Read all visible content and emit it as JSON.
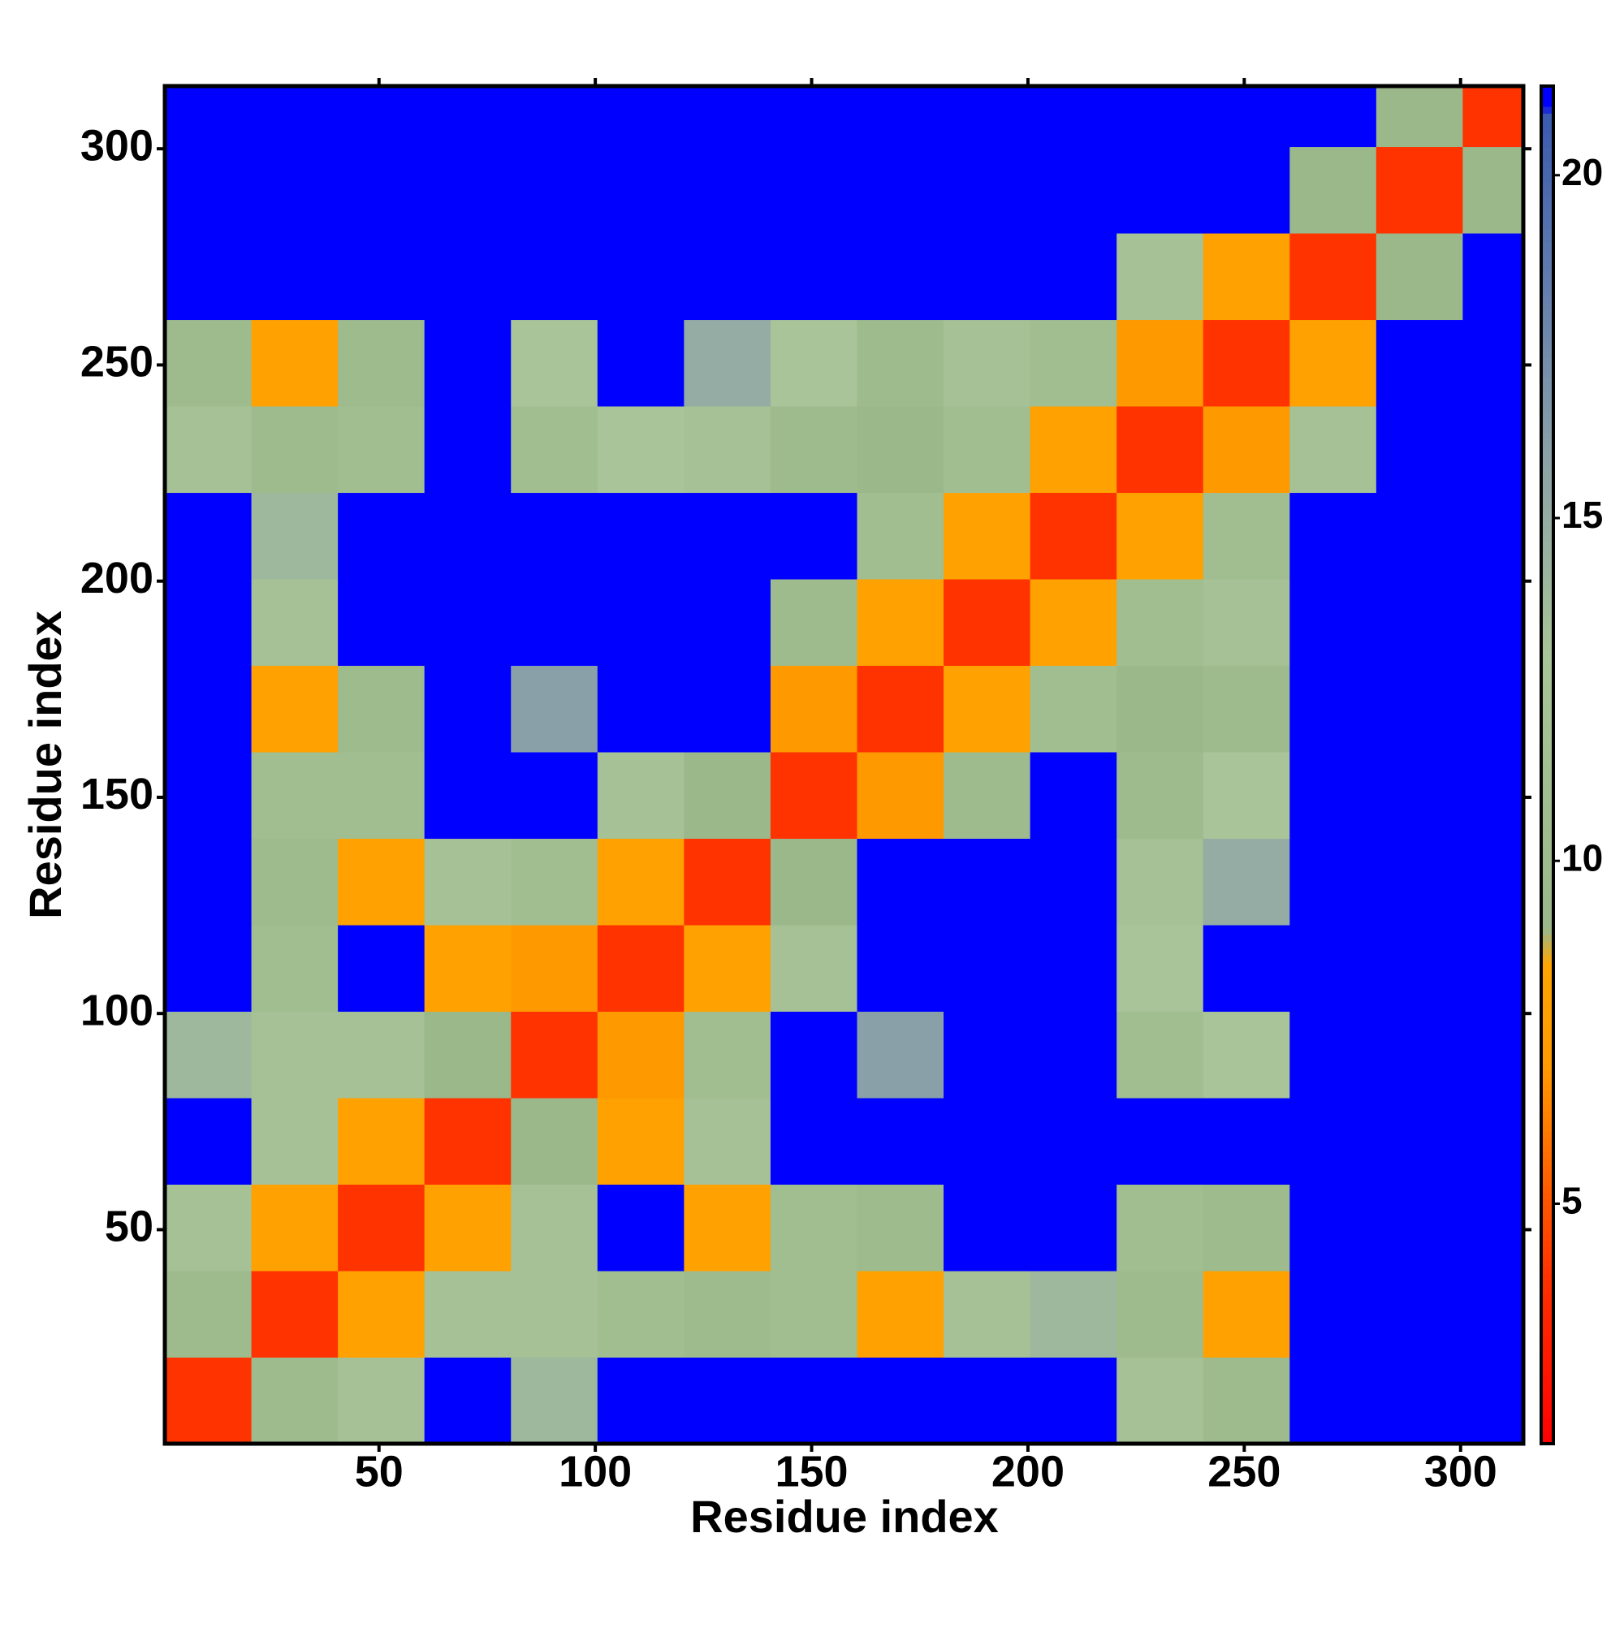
{
  "chart_data": {
    "type": "heatmap",
    "x_label": "Residue index",
    "y_label": "Residue index",
    "bins": [
      0.5,
      20.5,
      40.5,
      60.5,
      80.5,
      100.5,
      120.5,
      140.5,
      160.5,
      180.5,
      200.5,
      220.5,
      240.5,
      260.5,
      280.5,
      300.5,
      314.5
    ],
    "z": [
      [
        4,
        10,
        12,
        21,
        14,
        21,
        21,
        21,
        21,
        21,
        21,
        12,
        10,
        21,
        21,
        21
      ],
      [
        10,
        4,
        8,
        12,
        12,
        11,
        10,
        11,
        8,
        12,
        14,
        10,
        8,
        21,
        21,
        21
      ],
      [
        12,
        8,
        4,
        8,
        12,
        21,
        8,
        11,
        10,
        21,
        21,
        11,
        10,
        21,
        21,
        21
      ],
      [
        21,
        12,
        8,
        4,
        9,
        8,
        12,
        21,
        21,
        21,
        21,
        21,
        21,
        21,
        21,
        21
      ],
      [
        14,
        12,
        12,
        9,
        4,
        7,
        11,
        21,
        16,
        21,
        21,
        11,
        13,
        21,
        21,
        21
      ],
      [
        21,
        11,
        21,
        8,
        7,
        4,
        8,
        12,
        21,
        21,
        21,
        13,
        21,
        21,
        21,
        21
      ],
      [
        21,
        10,
        8,
        12,
        11,
        8,
        4,
        9,
        21,
        21,
        21,
        12,
        15,
        21,
        21,
        21
      ],
      [
        21,
        11,
        11,
        21,
        21,
        12,
        9,
        4,
        7,
        10,
        21,
        10,
        13,
        21,
        21,
        21
      ],
      [
        21,
        8,
        10,
        21,
        16,
        21,
        21,
        7,
        4,
        8,
        11,
        9,
        10,
        21,
        21,
        21
      ],
      [
        21,
        12,
        21,
        21,
        21,
        21,
        21,
        10,
        8,
        4,
        8,
        11,
        12,
        21,
        21,
        21
      ],
      [
        21,
        14,
        21,
        21,
        21,
        21,
        21,
        21,
        11,
        8,
        4,
        8,
        11,
        21,
        21,
        21
      ],
      [
        12,
        10,
        11,
        21,
        11,
        13,
        12,
        10,
        9,
        11,
        8,
        4,
        7,
        12,
        21,
        21
      ],
      [
        10,
        8,
        10,
        21,
        13,
        21,
        15,
        13,
        10,
        12,
        11,
        7,
        4,
        8,
        21,
        21
      ],
      [
        21,
        21,
        21,
        21,
        21,
        21,
        21,
        21,
        21,
        21,
        21,
        12,
        8,
        4,
        9,
        21
      ],
      [
        21,
        21,
        21,
        21,
        21,
        21,
        21,
        21,
        21,
        21,
        21,
        21,
        21,
        9,
        4,
        9
      ],
      [
        21,
        21,
        21,
        21,
        21,
        21,
        21,
        21,
        21,
        21,
        21,
        21,
        21,
        21,
        9,
        4
      ]
    ],
    "xlim": [
      0.5,
      314.5
    ],
    "ylim": [
      0.5,
      314.5
    ],
    "xticks": [
      50,
      100,
      150,
      200,
      250,
      300
    ],
    "yticks": [
      50,
      100,
      150,
      200,
      250,
      300
    ],
    "zlim": [
      1.5,
      21.3
    ],
    "zticks": [
      5,
      10,
      15,
      20
    ],
    "colorscale": [
      [
        1.5,
        "#ff0000"
      ],
      [
        4,
        "#ff3300"
      ],
      [
        7,
        "#ff9900"
      ],
      [
        8.5,
        "#ffa500"
      ],
      [
        9,
        "#9ab88a"
      ],
      [
        13,
        "#a8c498"
      ],
      [
        16,
        "#8aa0a8"
      ],
      [
        20.9,
        "#3a5ab0"
      ],
      [
        21,
        "#0000ff"
      ],
      [
        21.3,
        "#0000ff"
      ]
    ]
  }
}
